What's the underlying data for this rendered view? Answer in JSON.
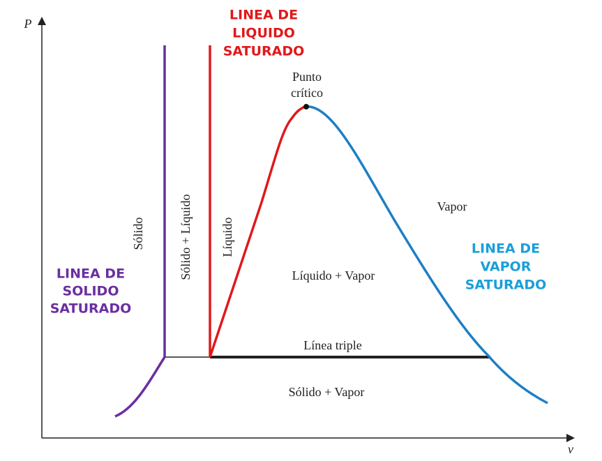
{
  "axes": {
    "y_label": "P",
    "x_label": "v"
  },
  "annotations": {
    "liquid_line": {
      "lines": [
        "LINEA DE",
        "LIQUIDO",
        "SATURADO"
      ]
    },
    "vapor_line": {
      "lines": [
        "LINEA DE",
        "VAPOR",
        "SATURADO"
      ]
    },
    "solid_line": {
      "lines": [
        "LINEA DE",
        "SOLIDO",
        "SATURADO"
      ]
    },
    "critical_point": {
      "lines": [
        "Punto",
        "crítico"
      ]
    },
    "triple_line": "Línea triple"
  },
  "regions": {
    "solid": "Sólido",
    "solid_liquid": "Sólido + Líquido",
    "liquid": "Líquido",
    "liquid_vapor": "Líquido + Vapor",
    "vapor": "Vapor",
    "solid_vapor": "Sólido + Vapor"
  }
}
